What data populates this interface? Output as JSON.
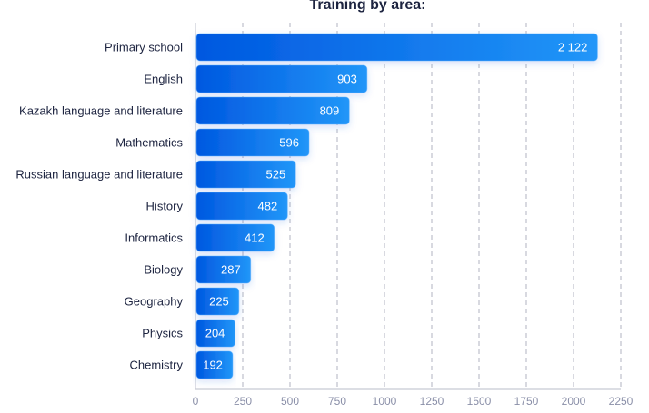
{
  "chart_data": {
    "type": "bar",
    "orientation": "horizontal",
    "title": "Training by area:",
    "categories": [
      "Primary school",
      "English",
      "Kazakh language and literature",
      "Mathematics",
      "Russian language and literature",
      "History",
      "Informatics",
      "Biology",
      "Geography",
      "Physics",
      "Chemistry"
    ],
    "values": [
      2122,
      903,
      809,
      596,
      525,
      482,
      412,
      287,
      225,
      204,
      192
    ],
    "value_labels": [
      "2 122",
      "903",
      "809",
      "596",
      "525",
      "482",
      "412",
      "287",
      "225",
      "204",
      "192"
    ],
    "xlim": [
      0,
      2250
    ],
    "xticks": [
      "0",
      "250",
      "500",
      "750",
      "1000",
      "1250",
      "1500",
      "1750",
      "2000",
      "2250"
    ],
    "grid": true,
    "colors": {
      "bar_start": "#0058e0",
      "bar_end": "#2196f8",
      "text": "#1d2440",
      "tick": "#8a8fa8"
    }
  }
}
